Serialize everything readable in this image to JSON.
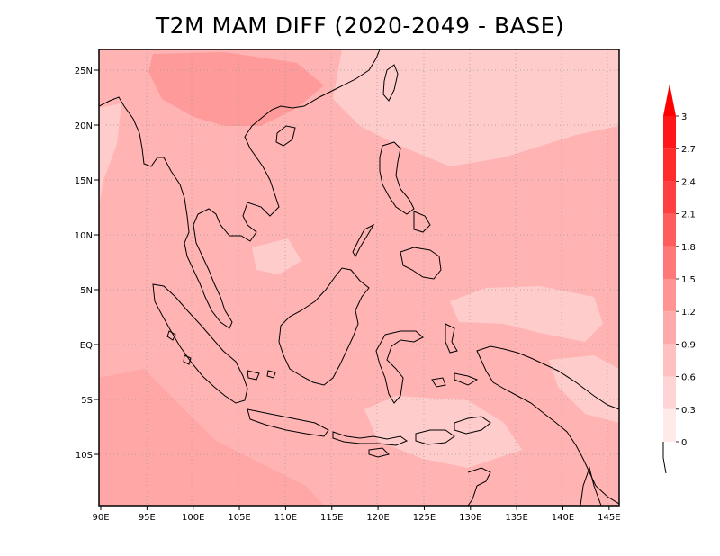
{
  "title": "T2M MAM DIFF (2020-2049 - BASE)",
  "x_ticks": [
    "90E",
    "95E",
    "100E",
    "105E",
    "110E",
    "115E",
    "120E",
    "125E",
    "130E",
    "135E",
    "140E",
    "145E"
  ],
  "y_ticks": [
    "25N",
    "20N",
    "15N",
    "10N",
    "5N",
    "EQ",
    "5S",
    "10S"
  ],
  "colorbar": {
    "levels": [
      "0",
      "0.3",
      "0.6",
      "0.9",
      "1.2",
      "1.5",
      "1.8",
      "2.1",
      "2.4",
      "2.7",
      "3"
    ],
    "colors": [
      "#ffeaea",
      "#ffd4d4",
      "#ffc0c0",
      "#ffaaaa",
      "#ff9494",
      "#ff7878",
      "#ff5c5c",
      "#ff4040",
      "#ff2a2a",
      "#ff1616"
    ],
    "top_arrow_color": "#ff0000"
  },
  "map_colors": {
    "c1": "#ffcccc",
    "c2": "#ffb3b3",
    "c3": "#ff9a9a"
  }
}
